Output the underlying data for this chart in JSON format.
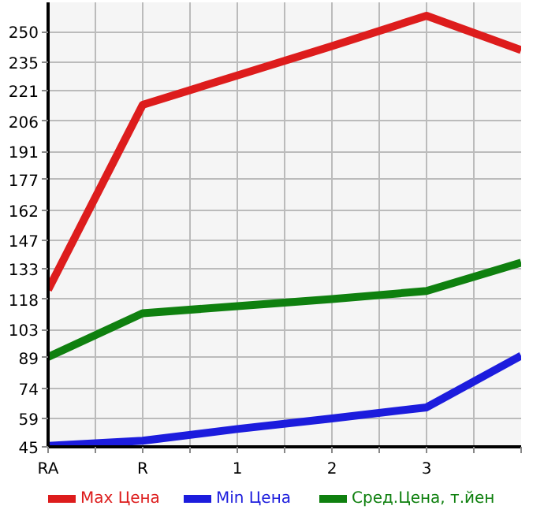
{
  "chart_data": {
    "type": "line",
    "categories": [
      "RA",
      "R",
      "1",
      "2",
      "3",
      null
    ],
    "series": [
      {
        "name": "Max Цена",
        "color": "#dd1c1c",
        "values": [
          122.6,
          214,
          228.5,
          243,
          258,
          241
        ]
      },
      {
        "name": "Min Цена",
        "color": "#1c1cdd",
        "values": [
          45.5,
          48,
          53.8,
          59,
          64.5,
          90
        ]
      },
      {
        "name": "Сред.Цена, т.йен",
        "color": "#0f800f",
        "values": [
          89.4,
          111,
          114.5,
          118,
          122,
          136
        ]
      }
    ],
    "ylim": [
      45,
      264.6
    ],
    "yticks": [
      45,
      59,
      74,
      89,
      103,
      118,
      133,
      147,
      162,
      177,
      191,
      206,
      221,
      235,
      250
    ],
    "grid": true,
    "legend": "bottom",
    "marker": "none",
    "line_style": "solid"
  }
}
